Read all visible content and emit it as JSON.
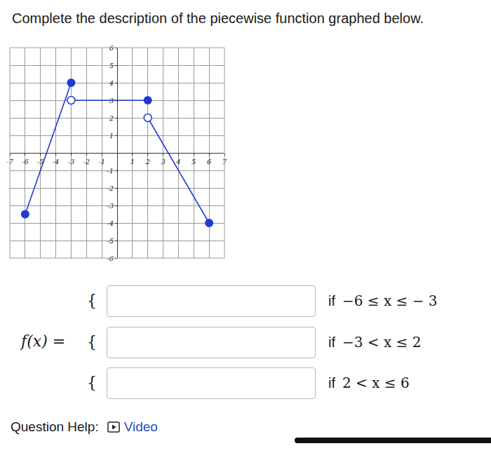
{
  "header": {
    "text": "Complete the description of the piecewise function graphed below."
  },
  "chart_data": {
    "type": "line",
    "color": "#1f3bd6",
    "series": [
      {
        "x": [
          -6,
          -3
        ],
        "values": [
          -3.5,
          4
        ]
      },
      {
        "x": [
          -3,
          2
        ],
        "values": [
          3,
          3
        ]
      },
      {
        "x": [
          2,
          6
        ],
        "values": [
          2,
          -4
        ]
      }
    ],
    "points": [
      {
        "x": -6,
        "y": -3.5,
        "marker": "filled"
      },
      {
        "x": -3,
        "y": 4,
        "marker": "filled"
      },
      {
        "x": -3,
        "y": 3,
        "marker": "open"
      },
      {
        "x": 2,
        "y": 3,
        "marker": "filled"
      },
      {
        "x": 2,
        "y": 2,
        "marker": "open"
      },
      {
        "x": 6,
        "y": -4,
        "marker": "filled"
      }
    ],
    "xlim": [
      -7,
      7
    ],
    "ylim": [
      -6,
      6
    ],
    "xticks": [
      -7,
      -6,
      -5,
      -4,
      -3,
      -2,
      -1,
      1,
      2,
      3,
      4,
      5,
      6,
      7
    ],
    "yticks": [
      -6,
      -5,
      -4,
      -3,
      -2,
      -1,
      1,
      2,
      3,
      4,
      5,
      6
    ],
    "grid": true
  },
  "form": {
    "label": "f(x) =",
    "rows": [
      {
        "brace": "{",
        "word": "if",
        "condition": "−6 ≤ x ≤ − 3"
      },
      {
        "brace": "{",
        "word": "if",
        "condition": "−3 < x ≤ 2"
      },
      {
        "brace": "{",
        "word": "if",
        "condition": "2 < x ≤ 6"
      }
    ]
  },
  "help": {
    "label": "Question Help:",
    "link": "Video"
  }
}
